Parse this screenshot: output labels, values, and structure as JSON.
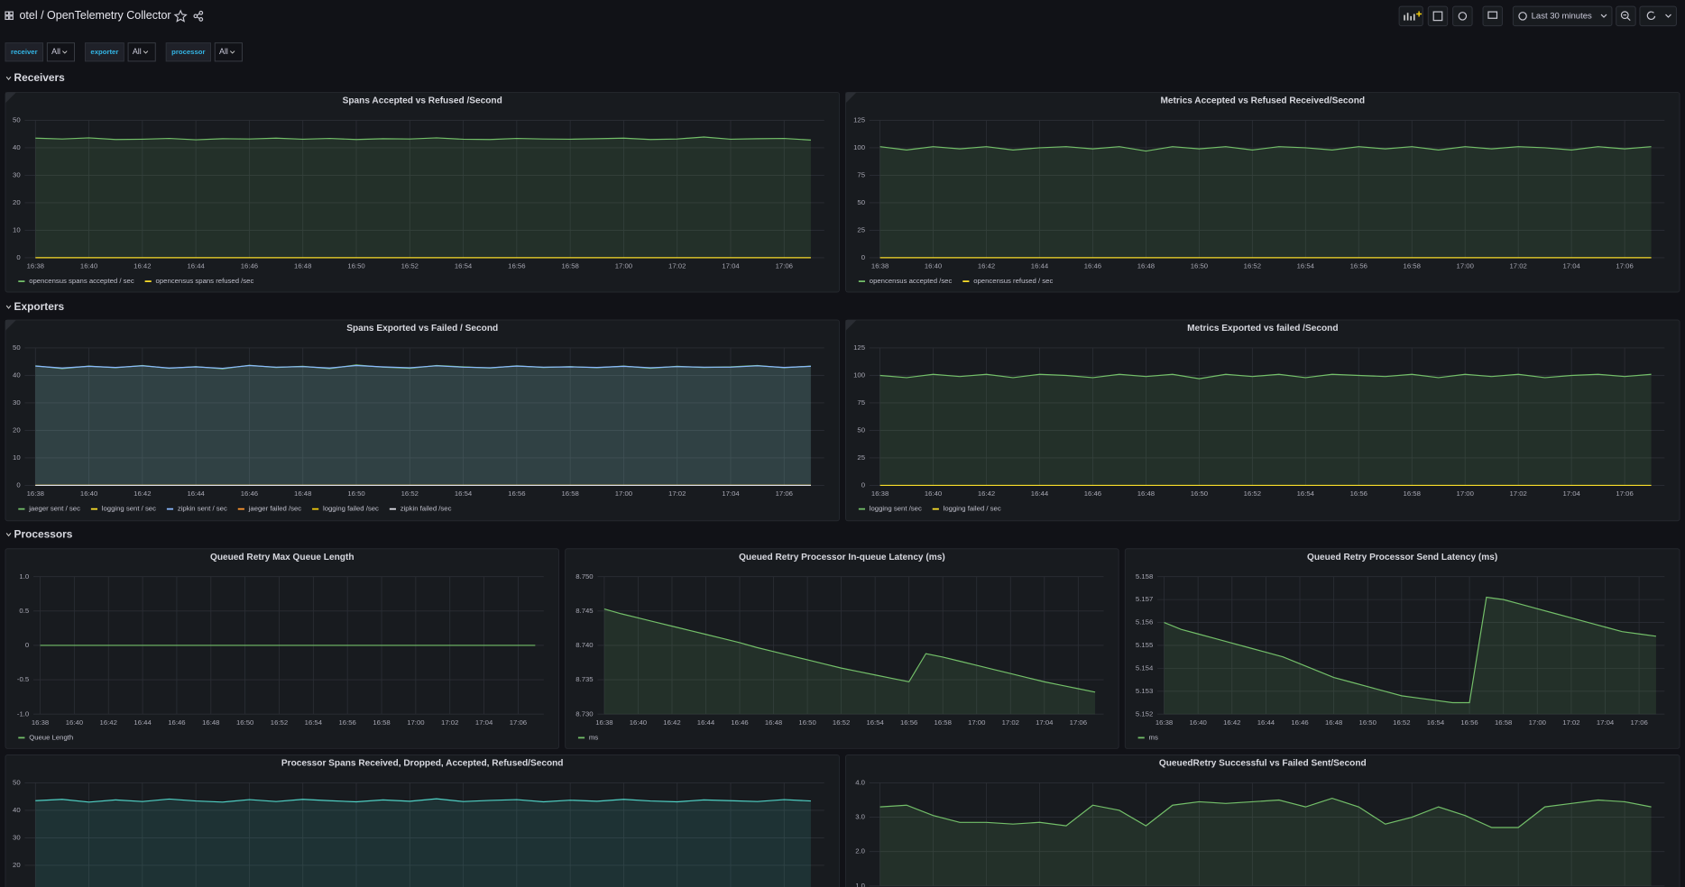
{
  "header": {
    "title": "otel / OpenTelemetry Collector",
    "time_range": "Last 30 minutes"
  },
  "variables": [
    {
      "label": "receiver",
      "value": "All"
    },
    {
      "label": "exporter",
      "value": "All"
    },
    {
      "label": "processor",
      "value": "All"
    }
  ],
  "time": {
    "x": [
      "16:38",
      "16:39",
      "16:40",
      "16:41",
      "16:42",
      "16:43",
      "16:44",
      "16:45",
      "16:46",
      "16:47",
      "16:48",
      "16:49",
      "16:50",
      "16:51",
      "16:52",
      "16:53",
      "16:54",
      "16:55",
      "16:56",
      "16:57",
      "16:58",
      "16:59",
      "17:00",
      "17:01",
      "17:02",
      "17:03",
      "17:04",
      "17:05",
      "17:06",
      "17:07"
    ],
    "xticks": [
      "16:38",
      "16:40",
      "16:42",
      "16:44",
      "16:46",
      "16:48",
      "16:50",
      "16:52",
      "16:54",
      "16:56",
      "16:58",
      "17:00",
      "17:02",
      "17:04",
      "17:06"
    ]
  },
  "rows": [
    {
      "title": "Receivers",
      "panels": [
        {
          "type": "line",
          "title": "Spans Accepted vs Refused /Second",
          "ylim": [
            0,
            50
          ],
          "yticks": [
            0,
            10,
            20,
            30,
            40,
            50
          ],
          "series": [
            {
              "name": "opencensus spans accepted / sec",
              "color": "#73bf69",
              "values": [
                43.5,
                43.2,
                43.6,
                43.0,
                43.1,
                43.4,
                42.9,
                43.3,
                43.2,
                43.5,
                43.1,
                43.4,
                43.0,
                43.3,
                43.2,
                43.6,
                43.1,
                43.0,
                43.4,
                43.2,
                43.1,
                43.3,
                43.5,
                43.0,
                43.2,
                43.9,
                43.1,
                43.3,
                43.4,
                42.8
              ]
            },
            {
              "name": "opencensus spans refused /sec",
              "color": "#fade2a",
              "values": [
                0,
                0,
                0,
                0,
                0,
                0,
                0,
                0,
                0,
                0,
                0,
                0,
                0,
                0,
                0,
                0,
                0,
                0,
                0,
                0,
                0,
                0,
                0,
                0,
                0,
                0,
                0,
                0,
                0,
                0
              ]
            }
          ]
        },
        {
          "type": "line",
          "title": "Metrics Accepted vs Refused Received/Second",
          "ylim": [
            0,
            125
          ],
          "yticks": [
            0,
            25,
            50,
            75,
            100,
            125
          ],
          "series": [
            {
              "name": "opencensus accepted /sec",
              "color": "#73bf69",
              "values": [
                101,
                98,
                101,
                99,
                101,
                98,
                100,
                101,
                99,
                101,
                97,
                101,
                99,
                101,
                98,
                101,
                100,
                98,
                101,
                99,
                101,
                98,
                101,
                99,
                101,
                100,
                98,
                101,
                99,
                101
              ]
            },
            {
              "name": "opencensus refused / sec",
              "color": "#fade2a",
              "values": [
                0,
                0,
                0,
                0,
                0,
                0,
                0,
                0,
                0,
                0,
                0,
                0,
                0,
                0,
                0,
                0,
                0,
                0,
                0,
                0,
                0,
                0,
                0,
                0,
                0,
                0,
                0,
                0,
                0,
                0
              ]
            }
          ]
        }
      ]
    },
    {
      "title": "Exporters",
      "panels": [
        {
          "type": "line",
          "title": "Spans Exported vs Failed / Second",
          "ylim": [
            0,
            50
          ],
          "yticks": [
            0,
            10,
            20,
            30,
            40,
            50
          ],
          "series": [
            {
              "name": "jaeger sent / sec",
              "color": "#73bf69",
              "values": [
                43.5,
                42.5,
                43.4,
                42.8,
                43.6,
                42.6,
                43.2,
                42.4,
                43.7,
                42.9,
                43.3,
                42.5,
                43.8,
                43.0,
                42.6,
                43.6,
                43.1,
                42.7,
                43.5,
                42.9,
                43.2,
                42.8,
                43.4,
                42.6,
                43.3,
                42.9,
                43.1,
                43.6,
                42.8,
                43.4
              ]
            },
            {
              "name": "logging sent / sec",
              "color": "#fade2a",
              "values": [
                0,
                0,
                0,
                0,
                0,
                0,
                0,
                0,
                0,
                0,
                0,
                0,
                0,
                0,
                0,
                0,
                0,
                0,
                0,
                0,
                0,
                0,
                0,
                0,
                0,
                0,
                0,
                0,
                0,
                0
              ]
            },
            {
              "name": "zipkin sent / sec",
              "color": "#8ab8ff",
              "values": [
                43.4,
                42.7,
                43.3,
                42.9,
                43.5,
                42.7,
                43.1,
                42.6,
                43.6,
                43.0,
                43.2,
                42.7,
                43.6,
                43.1,
                42.8,
                43.5,
                43.0,
                42.8,
                43.4,
                43.0,
                43.1,
                42.9,
                43.3,
                42.8,
                43.2,
                43.0,
                43.0,
                43.5,
                42.9,
                43.3
              ]
            },
            {
              "name": "jaeger failed /sec",
              "color": "#ff9830",
              "values": [
                0,
                0,
                0,
                0,
                0,
                0,
                0,
                0,
                0,
                0,
                0,
                0,
                0,
                0,
                0,
                0,
                0,
                0,
                0,
                0,
                0,
                0,
                0,
                0,
                0,
                0,
                0,
                0,
                0,
                0
              ]
            },
            {
              "name": "logging failed /sec",
              "color": "#f2cc0c",
              "values": [
                0,
                0,
                0,
                0,
                0,
                0,
                0,
                0,
                0,
                0,
                0,
                0,
                0,
                0,
                0,
                0,
                0,
                0,
                0,
                0,
                0,
                0,
                0,
                0,
                0,
                0,
                0,
                0,
                0,
                0
              ]
            },
            {
              "name": "zipkin failed /sec",
              "color": "#e0e0e8",
              "values": [
                0,
                0,
                0,
                0,
                0,
                0,
                0,
                0,
                0,
                0,
                0,
                0,
                0,
                0,
                0,
                0,
                0,
                0,
                0,
                0,
                0,
                0,
                0,
                0,
                0,
                0,
                0,
                0,
                0,
                0
              ]
            }
          ]
        },
        {
          "type": "line",
          "title": "Metrics Exported vs failed /Second",
          "ylim": [
            0,
            125
          ],
          "yticks": [
            0,
            25,
            50,
            75,
            100,
            125
          ],
          "series": [
            {
              "name": "logging sent /sec",
              "color": "#73bf69",
              "values": [
                100,
                98,
                101,
                99,
                101,
                98,
                101,
                100,
                98,
                101,
                99,
                101,
                97,
                101,
                99,
                101,
                98,
                101,
                100,
                99,
                101,
                98,
                101,
                99,
                101,
                98,
                100,
                101,
                99,
                101
              ]
            },
            {
              "name": "logging failed / sec",
              "color": "#fade2a",
              "values": [
                0,
                0,
                0,
                0,
                0,
                0,
                0,
                0,
                0,
                0,
                0,
                0,
                0,
                0,
                0,
                0,
                0,
                0,
                0,
                0,
                0,
                0,
                0,
                0,
                0,
                0,
                0,
                0,
                0,
                0
              ]
            }
          ]
        }
      ]
    },
    {
      "title": "Processors",
      "panels": [
        {
          "type": "line",
          "title": "Queued Retry Max Queue Length",
          "ylim": [
            -1,
            1
          ],
          "yticks": [
            {
              "value": -1,
              "label": "-1.0"
            },
            -0.5,
            0,
            0.5,
            {
              "value": 1,
              "label": "1.0"
            }
          ],
          "series": [
            {
              "name": "Queue Length",
              "color": "#73bf69",
              "values": [
                0,
                0,
                0,
                0,
                0,
                0,
                0,
                0,
                0,
                0,
                0,
                0,
                0,
                0,
                0,
                0,
                0,
                0,
                0,
                0,
                0,
                0,
                0,
                0,
                0,
                0,
                0,
                0,
                0,
                0
              ]
            }
          ]
        },
        {
          "type": "line",
          "title": "Queued Retry Processor In-queue Latency (ms)",
          "ylim": [
            8.73,
            8.75
          ],
          "yticks": [
            {
              "value": 8.73,
              "label": "8.730"
            },
            8.735,
            {
              "value": 8.74,
              "label": "8.740"
            },
            8.745,
            {
              "value": 8.75,
              "label": "8.750"
            }
          ],
          "series": [
            {
              "name": "ms",
              "color": "#73bf69",
              "values": [
                8.7453,
                8.7446,
                8.744,
                8.7434,
                8.7428,
                8.7422,
                8.7416,
                8.741,
                8.7404,
                8.7397,
                8.7391,
                8.7385,
                8.7379,
                8.7373,
                8.7367,
                8.7362,
                8.7357,
                8.7352,
                8.7347,
                8.7388,
                8.7383,
                8.7377,
                8.7371,
                8.7365,
                8.7359,
                8.7353,
                8.7347,
                8.7342,
                8.7337,
                8.7332
              ]
            }
          ]
        },
        {
          "type": "line",
          "title": "Queued Retry Processor Send Latency (ms)",
          "ylim": [
            5.152,
            5.158
          ],
          "yticks": [
            5.152,
            5.153,
            5.154,
            5.155,
            5.156,
            5.157,
            5.158
          ],
          "series": [
            {
              "name": "ms",
              "color": "#73bf69",
              "values": [
                5.156,
                5.1557,
                5.1555,
                5.1553,
                5.1551,
                5.1549,
                5.1547,
                5.1545,
                5.1542,
                5.1539,
                5.1536,
                5.1534,
                5.1532,
                5.153,
                5.1528,
                5.1527,
                5.1526,
                5.1525,
                5.1525,
                5.1571,
                5.157,
                5.1568,
                5.1566,
                5.1564,
                5.1562,
                5.156,
                5.1558,
                5.1556,
                5.1555,
                5.1554
              ]
            }
          ]
        },
        {
          "type": "line",
          "title": "Processor Spans Received, Dropped, Accepted, Refused/Second",
          "ylim": [
            0,
            50
          ],
          "yticks": [
            20,
            30,
            40,
            50
          ],
          "series": [
            {
              "color": "#4fd1c5",
              "values": [
                43.5,
                44,
                43,
                43.8,
                43.2,
                44.1,
                43.4,
                43,
                43.9,
                43.2,
                44,
                43.5,
                43.1,
                43.8,
                43.3,
                44.2,
                43.2,
                43.6,
                43.9,
                43.1,
                43.7,
                43.3,
                44,
                43.4,
                43.1,
                43.8,
                43.5,
                43.2,
                43.9,
                43.4
              ]
            }
          ]
        },
        {
          "type": "line",
          "title": "QueuedRetry Successful vs Failed Sent/Second",
          "ylim": [
            1,
            4
          ],
          "yticks": [
            {
              "value": 1,
              "label": "1.0"
            },
            {
              "value": 2,
              "label": "2.0"
            },
            {
              "value": 3,
              "label": "3.0"
            },
            {
              "value": 4,
              "label": "4.0"
            }
          ],
          "series": [
            {
              "color": "#73bf69",
              "values": [
                3.3,
                3.35,
                3.05,
                2.85,
                2.85,
                2.8,
                2.85,
                2.75,
                3.35,
                3.2,
                2.75,
                3.35,
                3.45,
                3.4,
                3.45,
                3.5,
                3.3,
                3.55,
                3.3,
                2.8,
                3.0,
                3.3,
                3.05,
                2.7,
                2.7,
                3.3,
                3.4,
                3.5,
                3.45,
                3.3
              ]
            }
          ]
        }
      ]
    }
  ]
}
